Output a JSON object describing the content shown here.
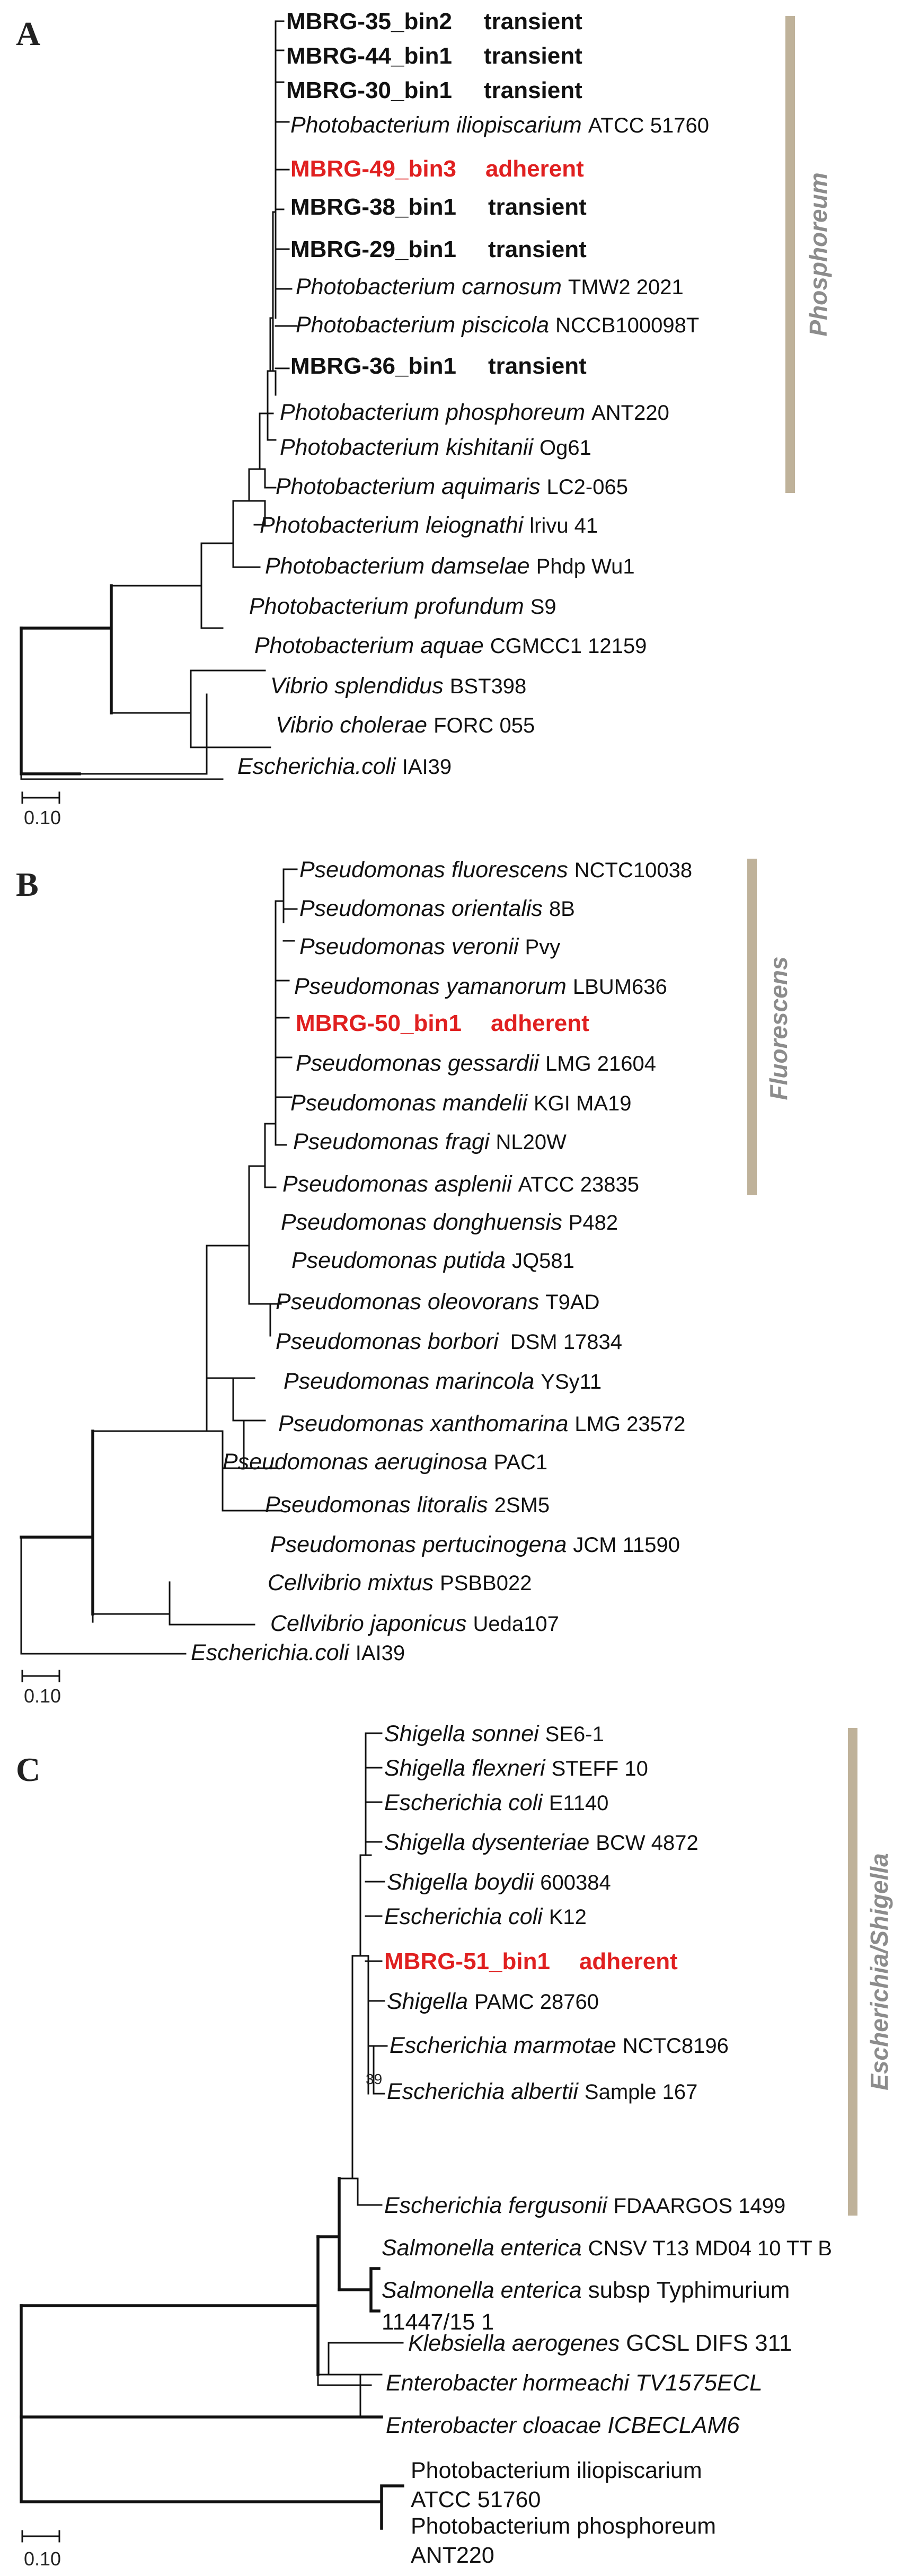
{
  "panels": [
    {
      "letter": "A",
      "clade_label": "Phosphoreum",
      "clade_color": "#bfb29a",
      "scale_label": "0.10",
      "leaves": [
        {
          "name": "MBRG-35_bin2",
          "note": "transient",
          "style": "bold"
        },
        {
          "name": "MBRG-44_bin1",
          "note": "transient",
          "style": "bold"
        },
        {
          "name": "MBRG-30_bin1",
          "note": "transient",
          "style": "bold"
        },
        {
          "species": "Photobacterium iliopiscarium",
          "strain": "ATCC 51760",
          "style": "normal"
        },
        {
          "name": "MBRG-49_bin3",
          "note": "adherent",
          "style": "red"
        },
        {
          "name": "MBRG-38_bin1",
          "note": "transient",
          "style": "bold"
        },
        {
          "name": "MBRG-29_bin1",
          "note": "transient",
          "style": "bold"
        },
        {
          "species": "Photobacterium carnosum",
          "strain": "TMW2 2021",
          "style": "normal"
        },
        {
          "species": "Photobacterium piscicola",
          "strain": "NCCB100098T",
          "style": "normal"
        },
        {
          "name": "MBRG-36_bin1",
          "note": "transient",
          "style": "bold"
        },
        {
          "species": "Photobacterium phosphoreum",
          "strain": "ANT220",
          "style": "normal"
        },
        {
          "species": "Photobacterium kishitanii",
          "strain": "Og61",
          "style": "normal"
        },
        {
          "species": "Photobacterium aquimaris",
          "strain": "LC2-065",
          "style": "normal"
        },
        {
          "species": "Photobacterium leiognathi",
          "strain": "lrivu 41",
          "style": "normal"
        },
        {
          "species": "Photobacterium damselae",
          "strain": "Phdp Wu1",
          "style": "normal"
        },
        {
          "species": "Photobacterium profundum",
          "strain": "S9",
          "style": "normal"
        },
        {
          "species": "Photobacterium aquae",
          "strain": "CGMCC1 12159",
          "style": "normal"
        },
        {
          "species": "Vibrio splendidus",
          "strain": "BST398",
          "style": "normal"
        },
        {
          "species": "Vibrio cholerae",
          "strain": "FORC 055",
          "style": "normal"
        },
        {
          "species": "Escherichia.coli",
          "strain": "IAI39",
          "style": "normal"
        }
      ]
    },
    {
      "letter": "B",
      "clade_label": "Fluorescens",
      "clade_color": "#bfb29a",
      "scale_label": "0.10",
      "leaves": [
        {
          "species": "Pseudomonas fluorescens",
          "strain": "NCTC10038",
          "style": "normal"
        },
        {
          "species": "Pseudomonas orientalis",
          "strain": "8B",
          "style": "normal"
        },
        {
          "species": "Pseudomonas veronii",
          "strain": "Pvy",
          "style": "normal"
        },
        {
          "species": "Pseudomonas yamanorum",
          "strain": "LBUM636",
          "style": "normal"
        },
        {
          "name": "MBRG-50_bin1",
          "note": "adherent",
          "style": "red"
        },
        {
          "species": "Pseudomonas gessardii",
          "strain": "LMG 21604",
          "style": "normal"
        },
        {
          "species": "Pseudomonas mandelii",
          "strain": "KGI MA19",
          "style": "normal"
        },
        {
          "species": "Pseudomonas fragi",
          "strain": "NL20W",
          "style": "normal"
        },
        {
          "species": "Pseudomonas asplenii",
          "strain": "ATCC 23835",
          "style": "normal"
        },
        {
          "species": "Pseudomonas donghuensis",
          "strain": "P482",
          "style": "normal"
        },
        {
          "species": "Pseudomonas putida",
          "strain": "JQ581",
          "style": "normal"
        },
        {
          "species": "Pseudomonas oleovorans",
          "strain": "T9AD",
          "style": "normal"
        },
        {
          "species": "Pseudomonas borbori",
          "strain": "DSM 17834",
          "style": "normal"
        },
        {
          "species": "Pseudomonas marincola",
          "strain": "YSy11",
          "style": "normal"
        },
        {
          "species": "Pseudomonas xanthomarina",
          "strain": "LMG 23572",
          "style": "normal"
        },
        {
          "species": "Pseudomonas aeruginosa",
          "strain": "PAC1",
          "style": "normal"
        },
        {
          "species": "Pseudomonas litoralis",
          "strain": "2SM5",
          "style": "normal"
        },
        {
          "species": "Pseudomonas pertucinogena",
          "strain": "JCM 11590",
          "style": "normal"
        },
        {
          "species": "Cellvibrio mixtus",
          "strain": "PSBB022",
          "style": "normal"
        },
        {
          "species": "Cellvibrio japonicus",
          "strain": "Ueda107",
          "style": "normal"
        },
        {
          "species": "Escherichia.coli",
          "strain": "IAI39",
          "style": "normal"
        }
      ]
    },
    {
      "letter": "C",
      "clade_label": "Escherichia/Shigella",
      "clade_color": "#bfb29a",
      "scale_label": "0.10",
      "node_label": "39",
      "leaves": [
        {
          "species": "Shigella sonnei",
          "strain": "SE6-1",
          "style": "normal"
        },
        {
          "species": "Shigella flexneri",
          "strain": "STEFF 10",
          "style": "normal"
        },
        {
          "species": "Escherichia coli",
          "strain": "E1140",
          "style": "normal"
        },
        {
          "species": "Shigella dysenteriae",
          "strain": "BCW 4872",
          "style": "normal"
        },
        {
          "species": "Shigella boydii",
          "strain": "600384",
          "style": "normal"
        },
        {
          "species": "Escherichia coli",
          "strain": "K12",
          "style": "normal"
        },
        {
          "name": "MBRG-51_bin1",
          "note": "adherent",
          "style": "red"
        },
        {
          "species": "Shigella",
          "strain": "PAMC 28760",
          "style": "normal"
        },
        {
          "species": "Escherichia marmotae",
          "strain": "NCTC8196",
          "style": "normal"
        },
        {
          "species": "Escherichia albertii",
          "strain": "Sample 167",
          "style": "normal"
        },
        {
          "species": "Escherichia fergusonii",
          "strain": "FDAARGOS 1499",
          "style": "normal"
        },
        {
          "species": "Salmonella enterica",
          "strain": "CNSV T13 MD04 10 TT B",
          "style": "normal"
        },
        {
          "species": "Salmonella enterica",
          "strain": "subsp Typhimurium",
          "strain2": "11447/15 1",
          "style": "normal"
        },
        {
          "species": "Klebsiella aerogenes",
          "strain": "GCSL DIFS 311",
          "style": "normal"
        },
        {
          "species": "Enterobacter hormeachi",
          "strain": "TV1575ECL",
          "style": "italic"
        },
        {
          "species": "Enterobacter cloacae",
          "strain": "ICBECLAM6",
          "style": "italic"
        },
        {
          "species": "Photobacterium iliopiscarium",
          "strain2": "ATCC 51760",
          "style": "normal"
        },
        {
          "species": "Photobacterium phosphoreum",
          "strain2": "ANT220",
          "style": "normal"
        }
      ]
    }
  ]
}
